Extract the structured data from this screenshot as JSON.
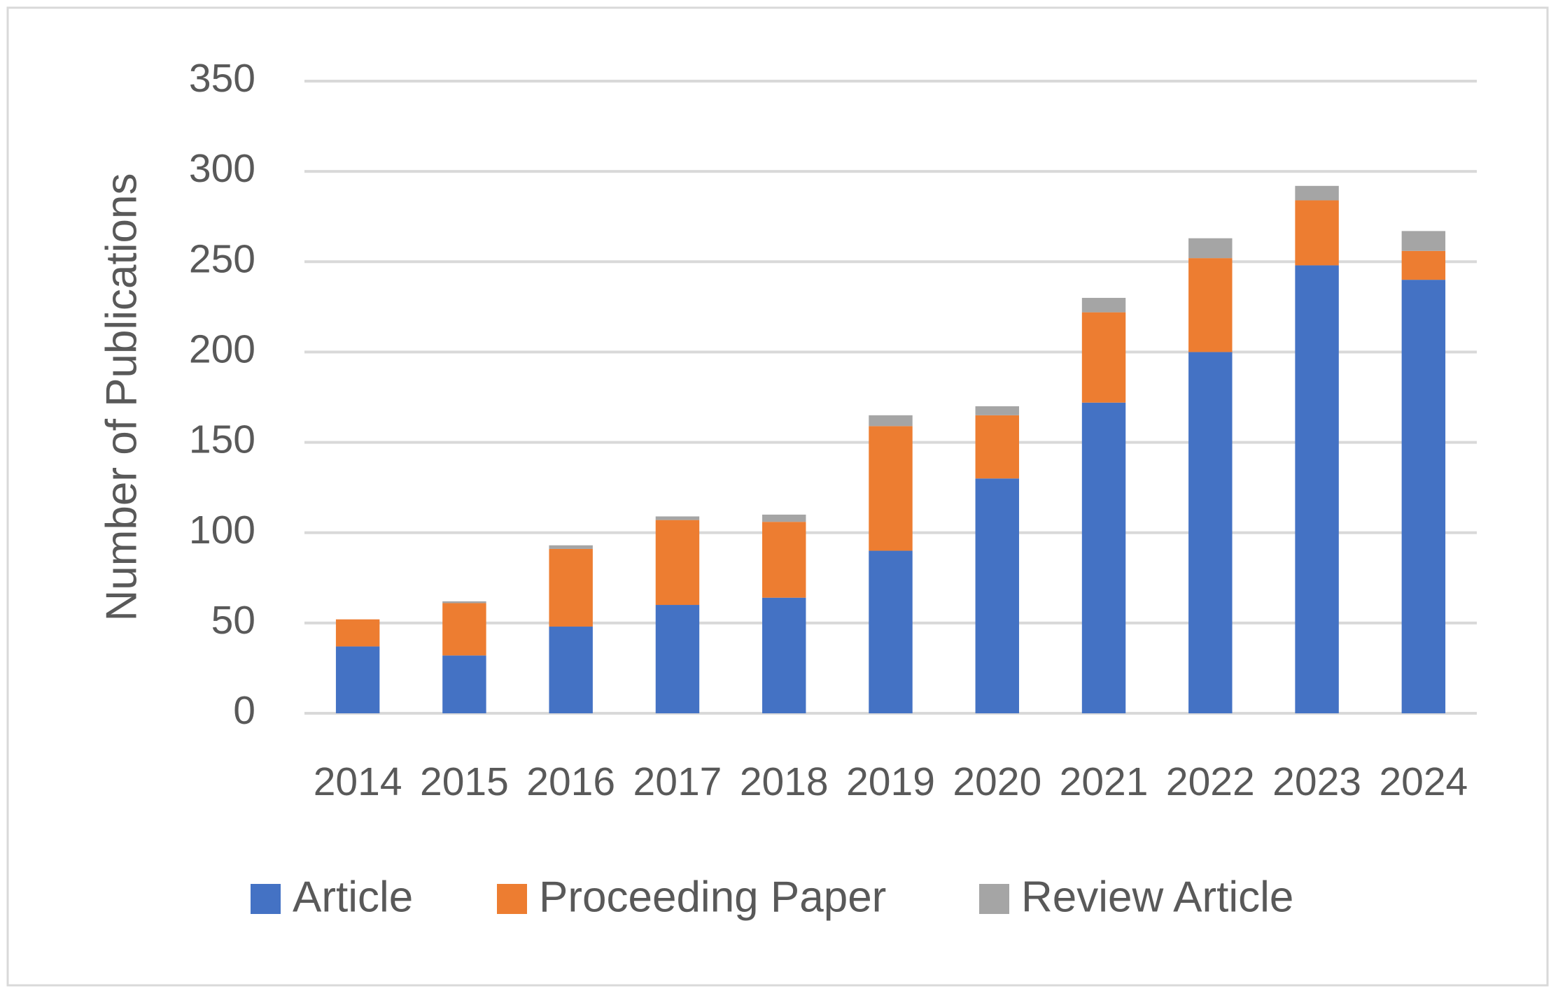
{
  "chart_data": {
    "type": "stacked-bar",
    "y_label": "Number of Publications",
    "categories": [
      "2014",
      "2015",
      "2016",
      "2017",
      "2018",
      "2019",
      "2020",
      "2021",
      "2022",
      "2023",
      "2024"
    ],
    "series": [
      {
        "name": "Article",
        "color": "#4472c4",
        "values": [
          37,
          32,
          48,
          60,
          64,
          90,
          130,
          172,
          200,
          248,
          240
        ]
      },
      {
        "name": "Proceeding Paper",
        "color": "#ed7d31",
        "values": [
          15,
          29,
          43,
          47,
          42,
          69,
          35,
          50,
          52,
          36,
          16
        ]
      },
      {
        "name": "Review Article",
        "color": "#a5a5a5",
        "values": [
          0,
          1,
          2,
          2,
          4,
          6,
          5,
          8,
          11,
          8,
          11
        ]
      }
    ],
    "ylim": [
      0,
      350
    ],
    "yticks": [
      0,
      50,
      100,
      150,
      200,
      250,
      300,
      350
    ],
    "grid": true,
    "legend": "bottom"
  }
}
